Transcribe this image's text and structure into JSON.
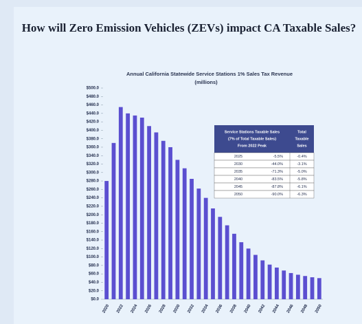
{
  "chart_data": {
    "type": "bar",
    "title": "How will Zero Emission Vehicles (ZEVs) impact CA Taxable Sales?",
    "subtitle": "Annual California Statewide Service Stations 1% Sales Tax Revenue",
    "unit_label": "(millions)",
    "categories": [
      "2020",
      null,
      "2022",
      null,
      "2024",
      null,
      "2026",
      null,
      "2028",
      null,
      "2030",
      null,
      "2032",
      null,
      "2034",
      null,
      "2036",
      null,
      "2038",
      null,
      "2040",
      null,
      "2042",
      null,
      "2044",
      null,
      "2046",
      null,
      "2048",
      null,
      "2050"
    ],
    "values": [
      280,
      370,
      455,
      440,
      435,
      430,
      410,
      395,
      375,
      360,
      330,
      310,
      285,
      262,
      240,
      215,
      195,
      175,
      155,
      135,
      120,
      105,
      92,
      82,
      75,
      68,
      62,
      58,
      55,
      52,
      50
    ],
    "color": "#5b4fd0",
    "ylim": [
      0,
      500
    ],
    "yticks": [
      {
        "value": 0,
        "label": "$0.0"
      },
      {
        "value": 20,
        "label": "$20.0"
      },
      {
        "value": 40,
        "label": "$40.0"
      },
      {
        "value": 60,
        "label": "$60.0"
      },
      {
        "value": 80,
        "label": "$80.0"
      },
      {
        "value": 100,
        "label": "$100.0"
      },
      {
        "value": 120,
        "label": "$120.0"
      },
      {
        "value": 140,
        "label": "$140.0"
      },
      {
        "value": 160,
        "label": "$160.0"
      },
      {
        "value": 180,
        "label": "$180.0"
      },
      {
        "value": 200,
        "label": "$200.0"
      },
      {
        "value": 220,
        "label": "$220.0"
      },
      {
        "value": 240,
        "label": "$240.0"
      },
      {
        "value": 260,
        "label": "$260.0"
      },
      {
        "value": 280,
        "label": "$280.0"
      },
      {
        "value": 300,
        "label": "$300.0"
      },
      {
        "value": 320,
        "label": "$320.0"
      },
      {
        "value": 340,
        "label": "$340.0"
      },
      {
        "value": 360,
        "label": "$360.0"
      },
      {
        "value": 380,
        "label": "$380.0"
      },
      {
        "value": 400,
        "label": "$400.0"
      },
      {
        "value": 420,
        "label": "$420.0"
      },
      {
        "value": 440,
        "label": "$440.0"
      },
      {
        "value": 460,
        "label": "$460.0"
      },
      {
        "value": 480,
        "label": "$480.0"
      },
      {
        "value": 500,
        "label": "$500.0"
      }
    ],
    "grid": false
  },
  "table": {
    "header": [
      "Service Stations Taxable Sales",
      "(7% of Total Taxable Sales)",
      "From 2022 Peak"
    ],
    "header2": [
      "Total",
      "Taxable",
      "Sales"
    ],
    "rows": [
      [
        "2025",
        "-5.5%",
        "-0.4%"
      ],
      [
        "2030",
        "-44.0%",
        "-3.1%"
      ],
      [
        "2035",
        "-71.3%",
        "-5.0%"
      ],
      [
        "2040",
        "-83.5%",
        "-5.8%"
      ],
      [
        "2045",
        "-87.8%",
        "-6.1%"
      ],
      [
        "2050",
        "-90.0%",
        "-6.3%"
      ]
    ]
  }
}
